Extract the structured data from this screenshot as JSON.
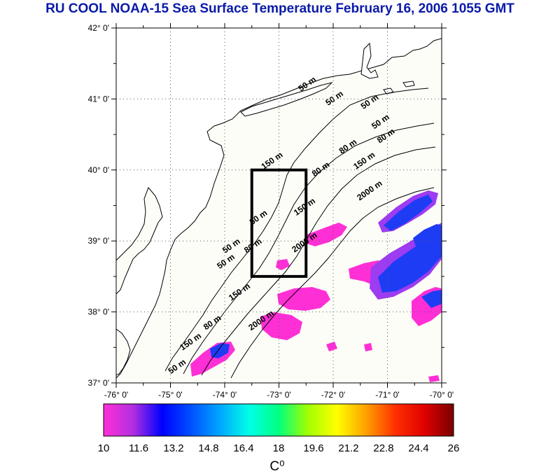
{
  "title": "RU COOL  NOAA-15 Sea Surface Temperature February 16, 2006 1055 GMT",
  "map": {
    "lon_range": [
      -76,
      -70
    ],
    "lat_range": [
      37,
      42
    ],
    "lon_ticks": [
      -76,
      -75,
      -74,
      -73,
      -72,
      -71,
      -70
    ],
    "lat_ticks": [
      37,
      38,
      39,
      40,
      41,
      42
    ],
    "lon_tick_labels": [
      "-76° 0'",
      "-75° 0'",
      "-74° 0'",
      "-73° 0'",
      "-72° 0'",
      "-71° 0'",
      "-70° 0'"
    ],
    "lat_tick_labels": [
      "37° 0'",
      "38° 0'",
      "39° 0'",
      "40° 0'",
      "41° 0'",
      "42° 0'"
    ],
    "grid": "dotted",
    "study_box": {
      "lon": [
        -73.5,
        -72.5
      ],
      "lat": [
        38.5,
        40.0
      ]
    },
    "contour_labels": [
      {
        "text": "50 m",
        "lon": -72.45,
        "lat": 41.18
      },
      {
        "text": "50 m",
        "lon": -71.95,
        "lat": 40.98
      },
      {
        "text": "50 m",
        "lon": -71.3,
        "lat": 40.93
      },
      {
        "text": "50 m",
        "lon": -71.1,
        "lat": 40.65
      },
      {
        "text": "80 m",
        "lon": -71.0,
        "lat": 40.45
      },
      {
        "text": "80 m",
        "lon": -71.7,
        "lat": 40.3
      },
      {
        "text": "150 m",
        "lon": -71.4,
        "lat": 40.1
      },
      {
        "text": "80 m",
        "lon": -72.2,
        "lat": 39.98
      },
      {
        "text": "150 m",
        "lon": -73.1,
        "lat": 40.1
      },
      {
        "text": "2000 m",
        "lon": -71.3,
        "lat": 39.68
      },
      {
        "text": "150 m",
        "lon": -72.5,
        "lat": 39.45
      },
      {
        "text": "50 m",
        "lon": -73.35,
        "lat": 39.3
      },
      {
        "text": "2000 m",
        "lon": -72.5,
        "lat": 38.95
      },
      {
        "text": "50 m",
        "lon": -73.85,
        "lat": 38.9
      },
      {
        "text": "50 m",
        "lon": -73.95,
        "lat": 38.68
      },
      {
        "text": "80 m",
        "lon": -73.45,
        "lat": 38.9
      },
      {
        "text": "150 m",
        "lon": -73.7,
        "lat": 38.25
      },
      {
        "text": "2000 m",
        "lon": -73.3,
        "lat": 37.85
      },
      {
        "text": "80 m",
        "lon": -74.2,
        "lat": 37.82
      },
      {
        "text": "150 m",
        "lon": -74.6,
        "lat": 37.55
      },
      {
        "text": "50 m",
        "lon": -74.85,
        "lat": 37.2
      }
    ]
  },
  "colorbar": {
    "min": 10,
    "max": 26,
    "tick_labels": [
      "10",
      "11.6",
      "13.2",
      "14.8",
      "16.4",
      "18",
      "19.6",
      "21.2",
      "22.8",
      "24.4",
      "26"
    ],
    "unit": "C⁰",
    "colors": [
      "#ff2fd6",
      "#b22fe0",
      "#0000ff",
      "#0050ff",
      "#00a8ff",
      "#00ffe8",
      "#00ff80",
      "#a0ff00",
      "#ffff00",
      "#ffa000",
      "#ff3000",
      "#e00000",
      "#7a0000"
    ]
  },
  "colors": {
    "title": "#0a1aa8",
    "land": "#ffffff",
    "ocean_nodata": "#fdfdf8",
    "sst_magenta": "#ff2fd6",
    "sst_purple": "#9d3cf0",
    "sst_blue": "#1f3cf5",
    "box": "#000000"
  }
}
